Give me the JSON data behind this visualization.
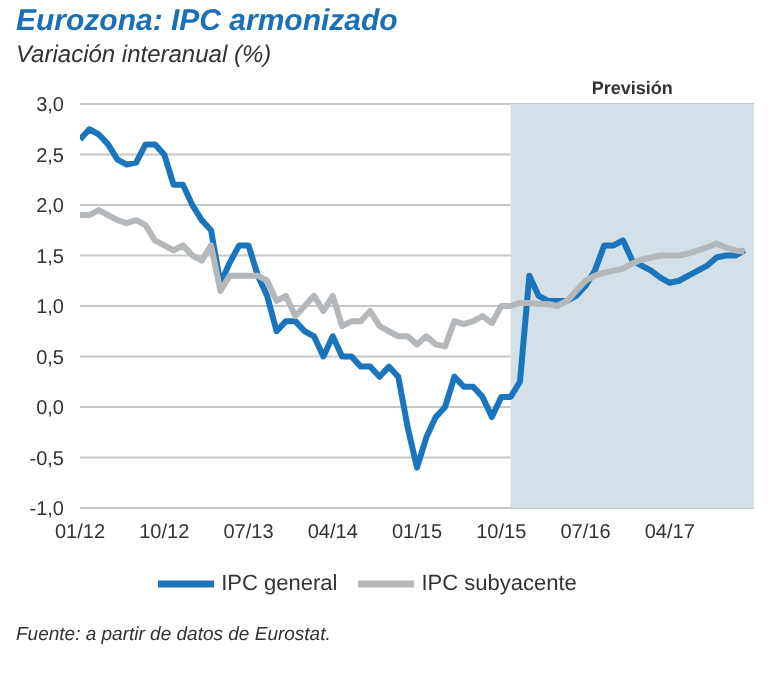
{
  "chart_data": {
    "type": "line",
    "title": "Eurozona: IPC armonizado",
    "subtitle": "Variación interanual (%)",
    "x": [
      "2012-01",
      "2012-02",
      "2012-03",
      "2012-04",
      "2012-05",
      "2012-06",
      "2012-07",
      "2012-08",
      "2012-09",
      "2012-10",
      "2012-11",
      "2012-12",
      "2013-01",
      "2013-02",
      "2013-03",
      "2013-04",
      "2013-05",
      "2013-06",
      "2013-07",
      "2013-08",
      "2013-09",
      "2013-10",
      "2013-11",
      "2013-12",
      "2014-01",
      "2014-02",
      "2014-03",
      "2014-04",
      "2014-05",
      "2014-06",
      "2014-07",
      "2014-08",
      "2014-09",
      "2014-10",
      "2014-11",
      "2014-12",
      "2015-01",
      "2015-02",
      "2015-03",
      "2015-04",
      "2015-05",
      "2015-06",
      "2015-07",
      "2015-08",
      "2015-09",
      "2015-10",
      "2015-11",
      "2015-12",
      "2016-01",
      "2016-02",
      "2016-03",
      "2016-04",
      "2016-05",
      "2016-06",
      "2016-07",
      "2016-08",
      "2016-09",
      "2016-10",
      "2016-11",
      "2016-12",
      "2017-01",
      "2017-02",
      "2017-03",
      "2017-04",
      "2017-05",
      "2017-06",
      "2017-07",
      "2017-08",
      "2017-09",
      "2017-10",
      "2017-11",
      "2017-12"
    ],
    "series": [
      {
        "name": "IPC general",
        "color": "#1a75bc",
        "values": [
          2.65,
          2.75,
          2.7,
          2.6,
          2.45,
          2.4,
          2.42,
          2.6,
          2.6,
          2.5,
          2.2,
          2.2,
          2.0,
          1.85,
          1.75,
          1.22,
          1.43,
          1.6,
          1.6,
          1.3,
          1.1,
          0.75,
          0.85,
          0.85,
          0.75,
          0.7,
          0.5,
          0.7,
          0.5,
          0.5,
          0.4,
          0.4,
          0.3,
          0.4,
          0.3,
          -0.2,
          -0.6,
          -0.3,
          -0.1,
          0.0,
          0.3,
          0.2,
          0.2,
          0.1,
          -0.1,
          0.1,
          0.1,
          0.25,
          1.3,
          1.1,
          1.05,
          1.05,
          1.05,
          1.1,
          1.2,
          1.35,
          1.6,
          1.6,
          1.65,
          1.45,
          1.4,
          1.35,
          1.28,
          1.23,
          1.25,
          1.3,
          1.35,
          1.4,
          1.48,
          1.5,
          1.5,
          1.55
        ]
      },
      {
        "name": "IPC subyacente",
        "color": "#b4b8ba",
        "values": [
          1.9,
          1.9,
          1.95,
          1.9,
          1.85,
          1.82,
          1.85,
          1.8,
          1.65,
          1.6,
          1.55,
          1.6,
          1.5,
          1.45,
          1.6,
          1.15,
          1.3,
          1.3,
          1.3,
          1.3,
          1.25,
          1.05,
          1.1,
          0.9,
          1.0,
          1.1,
          0.95,
          1.1,
          0.8,
          0.85,
          0.85,
          0.95,
          0.8,
          0.75,
          0.7,
          0.7,
          0.62,
          0.7,
          0.62,
          0.6,
          0.85,
          0.82,
          0.85,
          0.9,
          0.83,
          1.0,
          1.0,
          1.03,
          1.03,
          1.02,
          1.02,
          1.0,
          1.05,
          1.15,
          1.25,
          1.3,
          1.33,
          1.35,
          1.37,
          1.42,
          1.46,
          1.48,
          1.5,
          1.5,
          1.5,
          1.52,
          1.55,
          1.58,
          1.62,
          1.58,
          1.55,
          1.54
        ]
      }
    ],
    "xlim": [
      "2012-01",
      "2018-01"
    ],
    "xticks": [
      {
        "value": "2012-01",
        "label": "01/12"
      },
      {
        "value": "2012-10",
        "label": "10/12"
      },
      {
        "value": "2013-07",
        "label": "07/13"
      },
      {
        "value": "2014-04",
        "label": "04/14"
      },
      {
        "value": "2015-01",
        "label": "01/15"
      },
      {
        "value": "2015-10",
        "label": "10/15"
      },
      {
        "value": "2016-07",
        "label": "07/16"
      },
      {
        "value": "2017-04",
        "label": "04/17"
      }
    ],
    "ylim": [
      -1,
      3
    ],
    "yticks": [
      {
        "value": -1,
        "label": "-1,0"
      },
      {
        "value": -0.5,
        "label": "-0,5"
      },
      {
        "value": 0,
        "label": "0,0"
      },
      {
        "value": 0.5,
        "label": "0,5"
      },
      {
        "value": 1,
        "label": "1,0"
      },
      {
        "value": 1.5,
        "label": "1,5"
      },
      {
        "value": 2,
        "label": "2,0"
      },
      {
        "value": 2.5,
        "label": "2,5"
      },
      {
        "value": 3,
        "label": "3,0"
      }
    ],
    "bands": [
      {
        "axis": "x",
        "from": "2015-11",
        "to": "2018-01",
        "label": "Previsión",
        "color": "#d3e0e8"
      }
    ],
    "grid": "y",
    "legend": "bottom",
    "marker": "none",
    "line_style": "solid",
    "annotations": [
      "Fuente: a partir de datos de Eurostat."
    ]
  }
}
